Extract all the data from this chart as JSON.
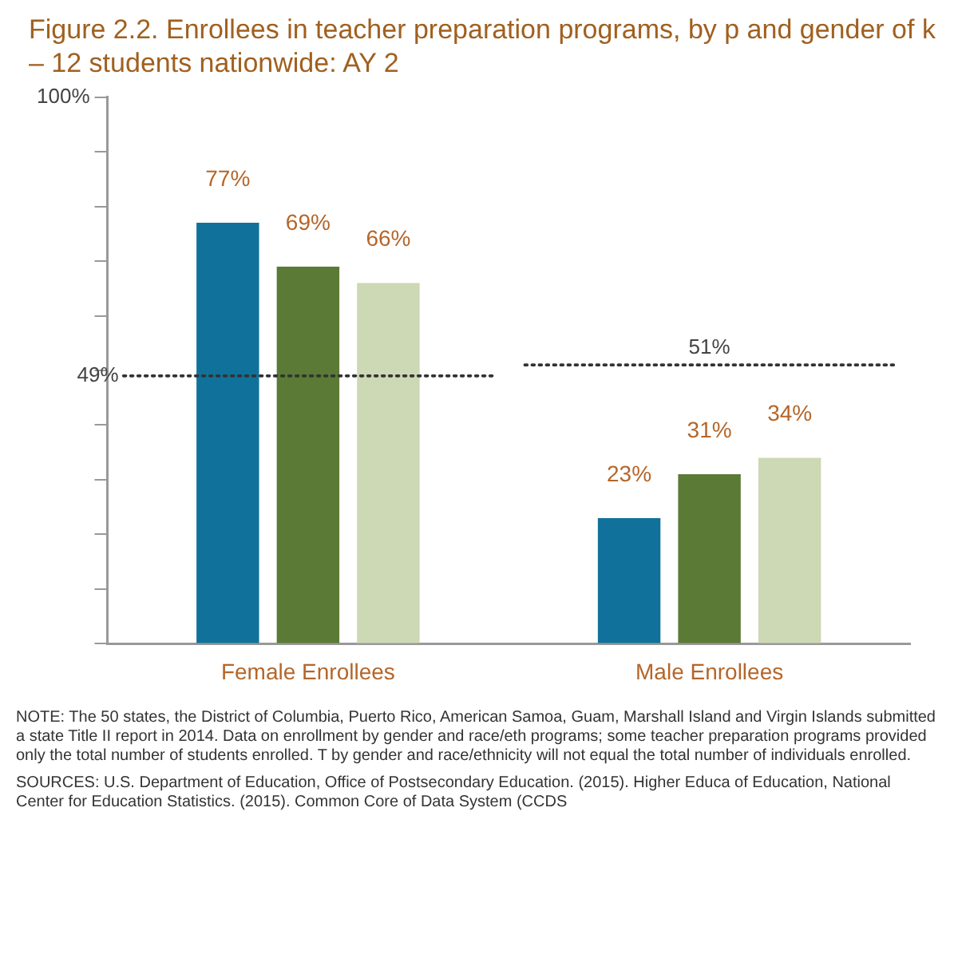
{
  "chart_data": {
    "type": "bar",
    "title": "Figure 2.2. Enrollees in teacher preparation programs, by p and gender of k – 12 students nationwide: AY 2",
    "categories": [
      "Female Enrollees",
      "Male Enrollees"
    ],
    "series": [
      {
        "color": "#10729a",
        "values": [
          77,
          23
        ]
      },
      {
        "color": "#5a7a36",
        "values": [
          69,
          31
        ]
      },
      {
        "color": "#cdd8b4",
        "values": [
          66,
          34
        ]
      }
    ],
    "ylim": [
      0,
      100
    ],
    "yticks": [
      {
        "value": 0,
        "label": null
      },
      {
        "value": 10,
        "label": null
      },
      {
        "value": 20,
        "label": null
      },
      {
        "value": 30,
        "label": null
      },
      {
        "value": 40,
        "label": null
      },
      {
        "value": 50,
        "label": null
      },
      {
        "value": 60,
        "label": null
      },
      {
        "value": 70,
        "label": null
      },
      {
        "value": 80,
        "label": null
      },
      {
        "value": 90,
        "label": null
      },
      {
        "value": 100,
        "label": "100%"
      }
    ],
    "value_labels": [
      [
        "77%",
        "23%"
      ],
      [
        "69%",
        "31%"
      ],
      [
        "66%",
        "34%"
      ]
    ],
    "ref_lines": [
      {
        "axis": "y",
        "value": 49,
        "label": "49%",
        "line_style": "dotted"
      },
      {
        "axis": "y",
        "value": 51,
        "label": "51%",
        "line_style": "dotted"
      }
    ],
    "grid": false,
    "legend": false,
    "annotations": [
      "NOTE: The 50 states, the District of Columbia, Puerto Rico, American Samoa, Guam, Marshall Island and Virgin Islands submitted a state Title II report in 2014. Data on enrollment by gender and race/eth programs; some teacher preparation programs provided only the total number of students enrolled. T by gender and race/ethnicity will not equal the total number of individuals enrolled.",
      "SOURCES: U.S. Department of Education, Office of Postsecondary Education. (2015). Higher Educa of Education, National Center for Education Statistics. (2015). Common Core of Data System (CCDS"
    ]
  }
}
